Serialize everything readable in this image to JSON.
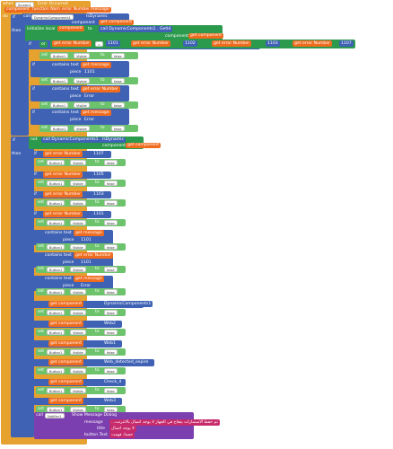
{
  "event_header": {
    "when": "when",
    "component": "Screen1",
    "event": "Error Occurred",
    "params": [
      "component",
      "function Name",
      "error Number",
      "message"
    ]
  },
  "do_label": "do",
  "then_label": "then",
  "else_label": "else",
  "if_label": "if",
  "call_label": "call",
  "set_label": "set",
  "get_label": "get",
  "to_label": "to",
  "not_label": "not",
  "or_label": "or",
  "is_dynamic_label": "IsDynamic",
  "dynamic_components_label": "DynamicComponents1",
  "component_label": "component",
  "get_component": "get component",
  "get_error_number": "get error Number",
  "get_message": "get message",
  "get_error_number_label": "get error Number",
  "contains_text": "contains  text",
  "piece_label": "piece",
  "visible_label": "Visible",
  "false_label": "false",
  "button_name": "Button1",
  "get_by_uuid": "GetId",
  "contains_label": "contains text",
  "eq_label": "=",
  "error_codes": [
    "1101",
    "1102",
    "1103",
    "1107"
  ],
  "error_codes_b": [
    "1103",
    "1105",
    "1107"
  ],
  "pieces": [
    "1101",
    "Error",
    "1101",
    "Error"
  ],
  "components": [
    "DynamicComponents1",
    "Web2",
    "Web1",
    "Web_detected_expire",
    "Check_4",
    "Web3"
  ],
  "notifier": {
    "call": "call",
    "component": "Notifier1",
    "method": "Show Message Dialog",
    "message_label": "message",
    "title_label": "title",
    "button_label": "button Text",
    "message_value": "...تم حفظ الاستمارات بنجاح في الجهاز لا يوجد اتصال بالانترنت",
    "title_value": "لا يوجد اتصال",
    "button_value": "حسنا، فهمت"
  }
}
